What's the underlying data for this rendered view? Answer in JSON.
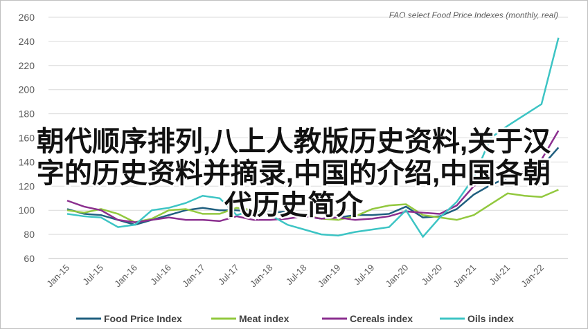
{
  "chart_data": {
    "type": "line",
    "title": "FAO select Food Price Indexes (monthly, real)",
    "categories": [
      "Jan-15",
      null,
      "Jul-15",
      null,
      "Jan-16",
      null,
      "Jul-16",
      null,
      "Jan-17",
      null,
      "Jul-17",
      null,
      "Jan-18",
      null,
      "Jul-18",
      null,
      "Jan-19",
      null,
      "Jul-19",
      null,
      "Jan-20",
      null,
      "Jul-20",
      null,
      "Jan-21",
      null,
      "Jul-21",
      null,
      "Jan-22",
      null
    ],
    "series": [
      {
        "name": "Food Price Index",
        "color": "#1f5f7f",
        "values": [
          101,
          97,
          96,
          92,
          88,
          92,
          96,
          100,
          102,
          100,
          100,
          99,
          98,
          99,
          95,
          93,
          94,
          96,
          96,
          97,
          103,
          94,
          95,
          101,
          113,
          121,
          127,
          132,
          136,
          152
        ]
      },
      {
        "name": "Meat index",
        "color": "#92c83e",
        "values": [
          100,
          98,
          101,
          97,
          90,
          93,
          100,
          101,
          97,
          97,
          102,
          100,
          97,
          97,
          96,
          93,
          92,
          95,
          101,
          104,
          105,
          96,
          94,
          92,
          96,
          105,
          114,
          112,
          111,
          117
        ]
      },
      {
        "name": "Cereals index",
        "color": "#8b2f8f",
        "values": [
          108,
          103,
          100,
          92,
          90,
          92,
          94,
          92,
          92,
          91,
          95,
          92,
          92,
          93,
          95,
          93,
          94,
          92,
          93,
          95,
          99,
          98,
          97,
          104,
          120,
          129,
          128,
          132,
          142,
          166
        ]
      },
      {
        "name": "Oils index",
        "color": "#3cc4c4",
        "values": [
          97,
          95,
          94,
          86,
          88,
          100,
          102,
          106,
          112,
          110,
          96,
          100,
          96,
          88,
          84,
          80,
          79,
          82,
          84,
          86,
          100,
          78,
          94,
          107,
          127,
          160,
          170,
          179,
          188,
          243
        ]
      }
    ],
    "ylim": [
      60,
      260
    ],
    "yticks": [
      60,
      80,
      100,
      120,
      140,
      160,
      180,
      200,
      220,
      240,
      260
    ],
    "grid": true,
    "annotations": [
      "朝代顺序排列,八上人教版历史资料,关于汉",
      "字的历史资料并摘录,中国的介绍,中国各朝",
      "代历史简介"
    ]
  }
}
